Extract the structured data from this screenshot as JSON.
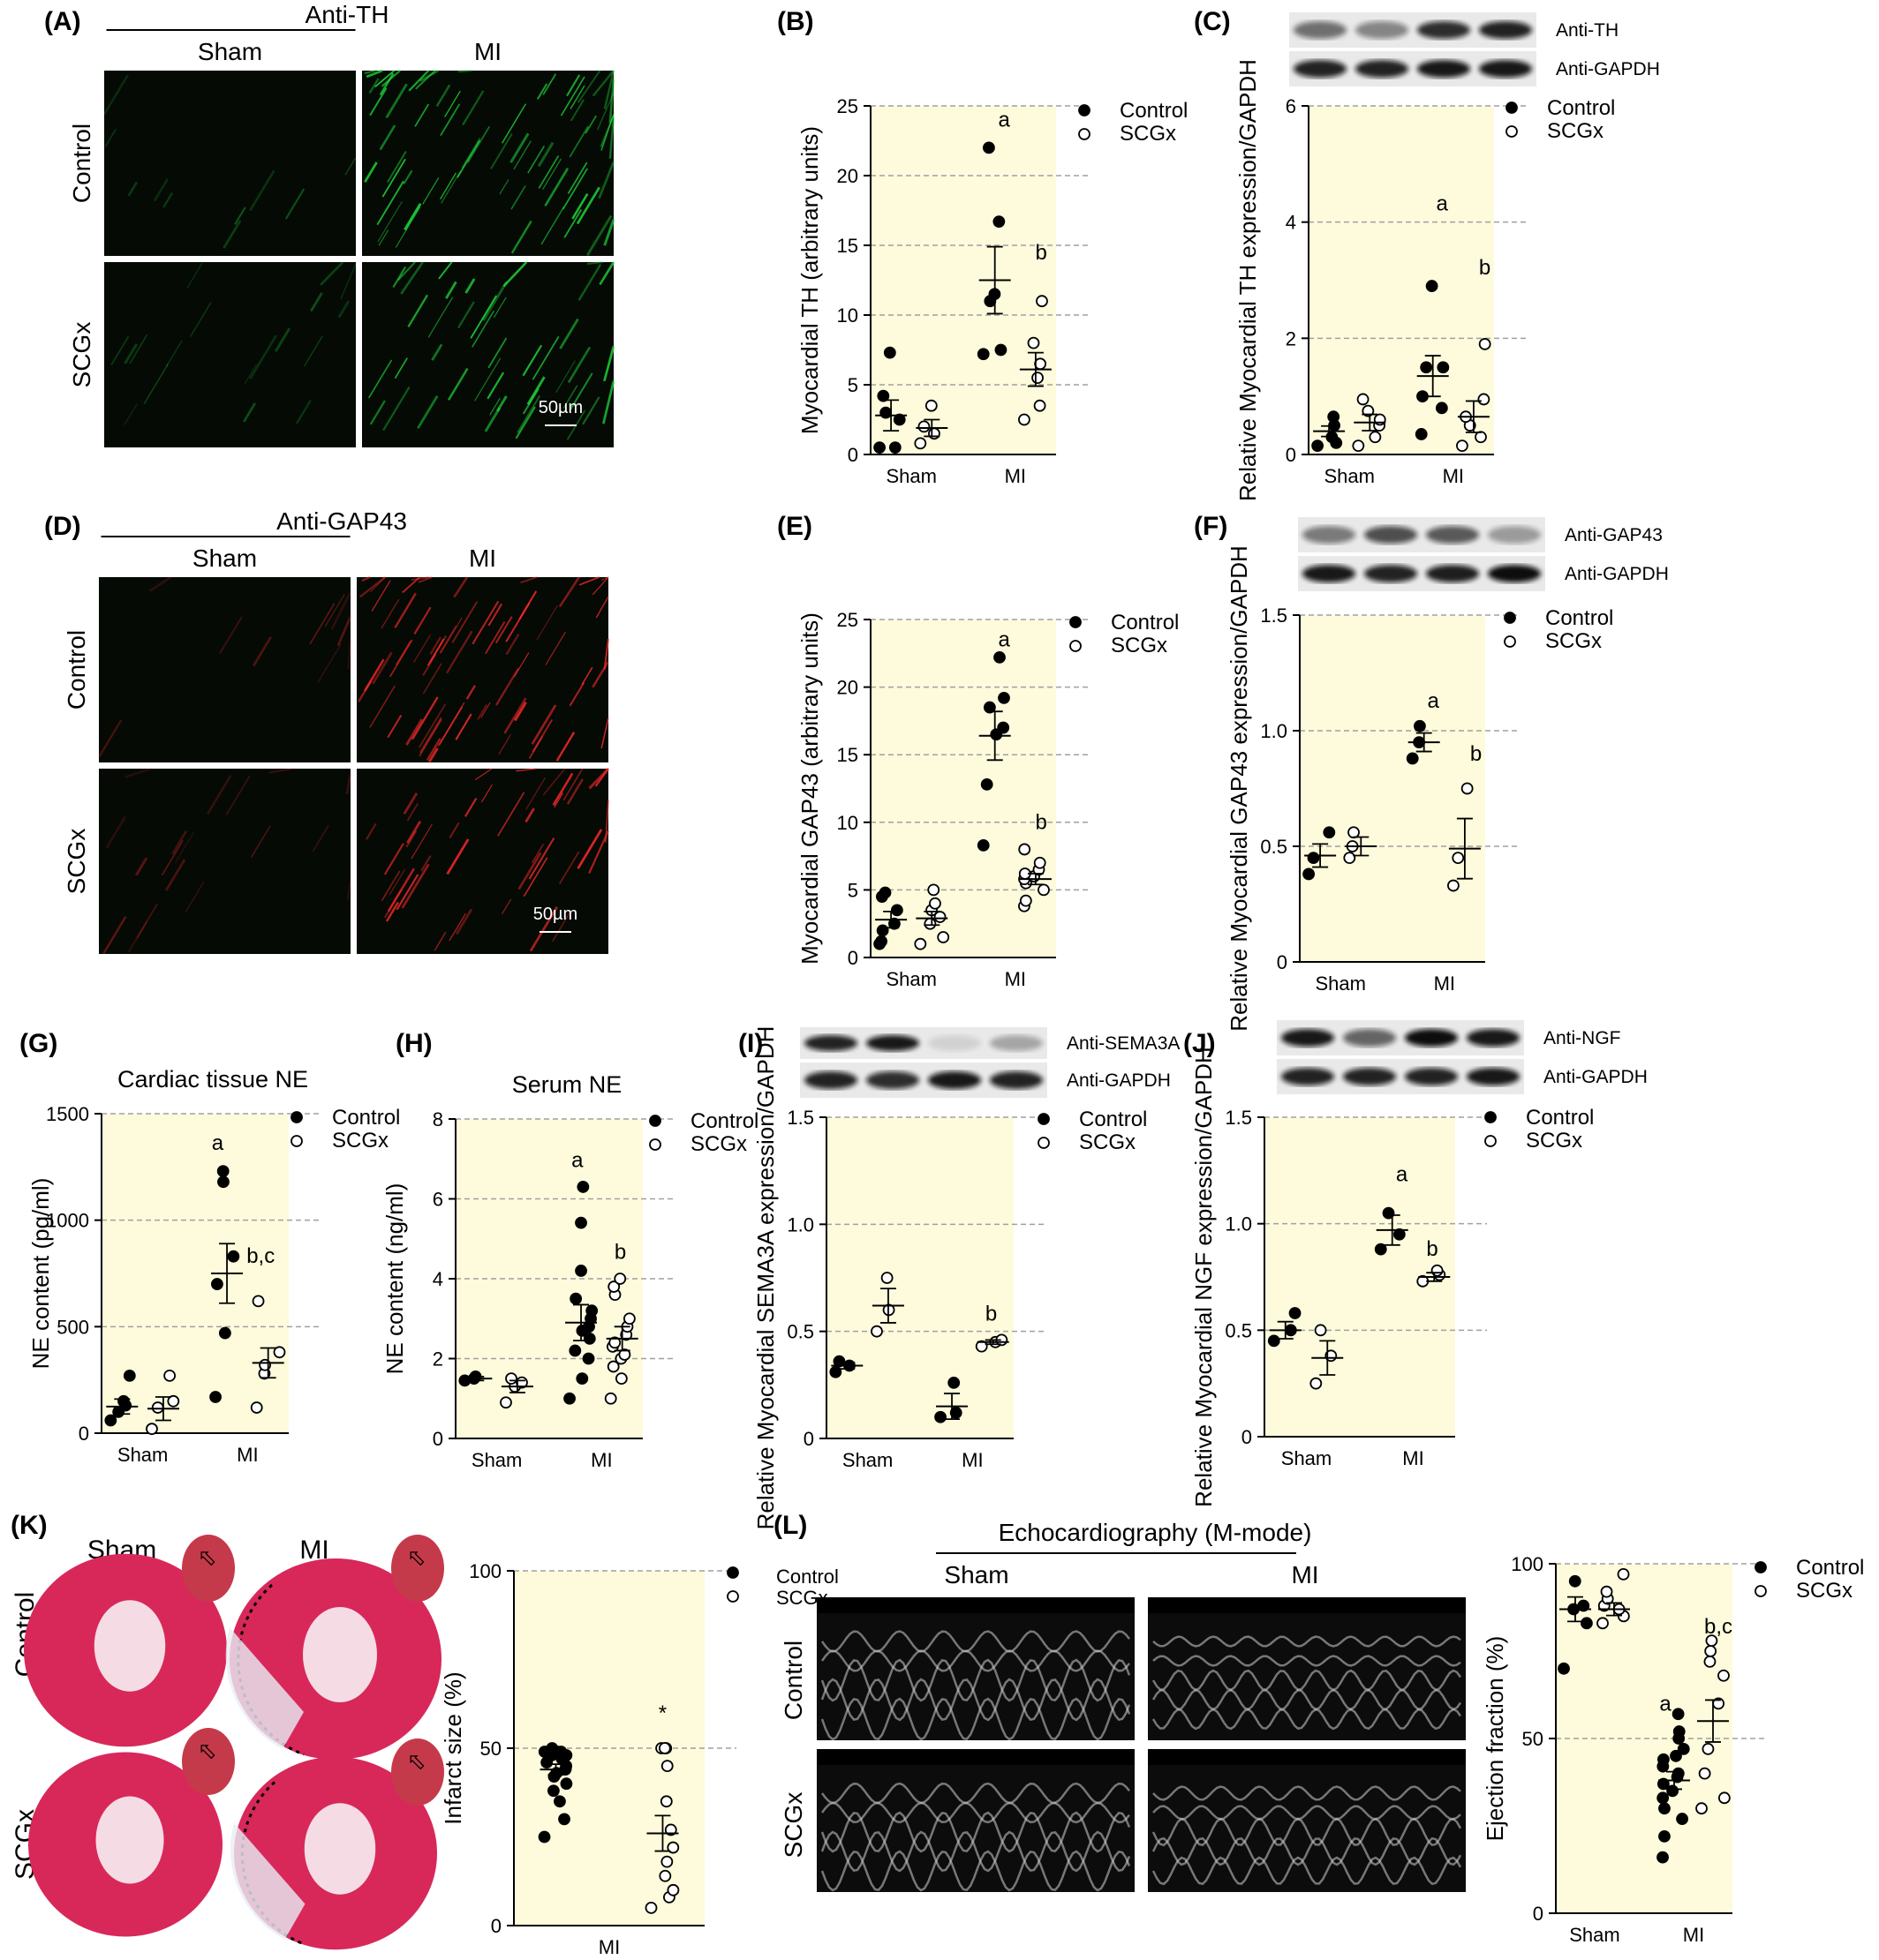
{
  "figure_labels": [
    "(A)",
    "(B)",
    "(C)",
    "(D)",
    "(E)",
    "(F)",
    "(G)",
    "(H)",
    "(I)",
    "(J)",
    "(K)",
    "(L)"
  ],
  "colors": {
    "plot_bg": "#fdfbdc",
    "grid": "#a0a0a0",
    "green_fluor": "#1fe03c",
    "red_fluor": "#ff2a2a"
  },
  "micrographs": [
    {
      "id": "A",
      "stain": "Anti-TH",
      "cols": [
        "Sham",
        "MI"
      ],
      "rows": [
        "Control",
        "SCGx"
      ],
      "scale": "50µm",
      "fluor": "green"
    },
    {
      "id": "D",
      "stain": "Anti-GAP43",
      "cols": [
        "Sham",
        "MI"
      ],
      "rows": [
        "Control",
        "SCGx"
      ],
      "scale": "50µm",
      "fluor": "red"
    }
  ],
  "blots": [
    {
      "id": "C",
      "labels": [
        "Anti-TH",
        "Anti-GAPDH"
      ]
    },
    {
      "id": "F",
      "labels": [
        "Anti-GAP43",
        "Anti-GAPDH"
      ]
    },
    {
      "id": "I",
      "labels": [
        "Anti-SEMA3A",
        "Anti-GAPDH"
      ]
    },
    {
      "id": "J",
      "labels": [
        "Anti-NGF",
        "Anti-GAPDH"
      ]
    }
  ],
  "panel_K": {
    "cols": [
      "Sham",
      "MI"
    ],
    "rows": [
      "Control",
      "SCGx"
    ]
  },
  "panel_L": {
    "title": "Echocardiography (M-mode)",
    "cols": [
      "Sham",
      "MI"
    ],
    "rows": [
      "Control",
      "SCGx"
    ],
    "legend": [
      "Control",
      "SCGx"
    ]
  },
  "chart_data": [
    {
      "id": "B",
      "type": "scatter",
      "title": "",
      "ylabel": "Myocardial TH (arbitrary units)",
      "categories": [
        "Sham",
        "MI"
      ],
      "ylim": [
        0,
        25
      ],
      "yticks": [
        0,
        5,
        10,
        15,
        20,
        25
      ],
      "grid": true,
      "legend": "top-right",
      "series": [
        {
          "name": "Control",
          "values": [
            [
              0.5,
              0.5,
              2.5,
              3.0,
              4.2,
              7.3
            ],
            [
              7.2,
              7.5,
              11.0,
              11.5,
              16.7,
              22.0
            ]
          ],
          "mean": [
            2.8,
            12.5
          ],
          "sem": [
            1.1,
            2.4
          ]
        },
        {
          "name": "SCGx",
          "values": [
            [
              0.8,
              1.5,
              2.0,
              3.5
            ],
            [
              2.5,
              3.5,
              5.5,
              6.5,
              8.0,
              11.0
            ]
          ],
          "mean": [
            1.9,
            6.1
          ],
          "sem": [
            0.6,
            1.2
          ]
        }
      ],
      "annotations": [
        "a",
        "b"
      ]
    },
    {
      "id": "C",
      "type": "scatter",
      "title": "",
      "ylabel": "Relative Myocardial TH expression/GAPDH",
      "categories": [
        "Sham",
        "MI"
      ],
      "ylim": [
        0,
        6
      ],
      "yticks": [
        0,
        2,
        4,
        6
      ],
      "grid": true,
      "legend": "top-right",
      "series": [
        {
          "name": "Control",
          "values": [
            [
              0.15,
              0.2,
              0.3,
              0.5,
              0.65
            ],
            [
              0.35,
              0.8,
              1.0,
              1.5,
              1.5,
              2.9
            ]
          ],
          "mean": [
            0.4,
            1.35
          ],
          "sem": [
            0.09,
            0.35
          ]
        },
        {
          "name": "SCGx",
          "values": [
            [
              0.15,
              0.3,
              0.5,
              0.6,
              0.75,
              0.95
            ],
            [
              0.15,
              0.3,
              0.5,
              0.65,
              0.95,
              1.9
            ]
          ],
          "mean": [
            0.55,
            0.65
          ],
          "sem": [
            0.14,
            0.27
          ]
        }
      ],
      "annotations": [
        "a",
        "b"
      ]
    },
    {
      "id": "E",
      "type": "scatter",
      "title": "",
      "ylabel": "Myocardial GAP43 (arbitrary units)",
      "categories": [
        "Sham",
        "MI"
      ],
      "ylim": [
        0,
        25
      ],
      "yticks": [
        0,
        5,
        10,
        15,
        20,
        25
      ],
      "grid": true,
      "legend": "top-right",
      "series": [
        {
          "name": "Control",
          "values": [
            [
              1.0,
              1.2,
              2.0,
              2.5,
              3.5,
              4.5,
              4.8
            ],
            [
              8.3,
              12.8,
              16.5,
              17.0,
              18.5,
              19.2,
              22.2
            ]
          ],
          "mean": [
            2.8,
            16.4
          ],
          "sem": [
            0.6,
            1.8
          ]
        },
        {
          "name": "SCGx",
          "values": [
            [
              1.0,
              1.5,
              2.5,
              3.0,
              3.5,
              4.0,
              5.0
            ],
            [
              3.8,
              4.2,
              5.0,
              5.5,
              5.8,
              6.0,
              6.2,
              6.5,
              7.0,
              8.0
            ]
          ],
          "mean": [
            2.9,
            5.8
          ],
          "sem": [
            0.5,
            0.4
          ]
        }
      ],
      "annotations": [
        "a",
        "b"
      ]
    },
    {
      "id": "F",
      "type": "scatter",
      "title": "",
      "ylabel": "Relative Myocardial GAP43 expression/GAPDH",
      "categories": [
        "Sham",
        "MI"
      ],
      "ylim": [
        0,
        1.5
      ],
      "yticks": [
        0,
        0.5,
        1.0,
        1.5
      ],
      "ytick_labels": [
        "0",
        "0.5",
        "1.0",
        "1.5"
      ],
      "grid": true,
      "legend": "top-right",
      "series": [
        {
          "name": "Control",
          "values": [
            [
              0.38,
              0.45,
              0.56
            ],
            [
              0.88,
              0.95,
              1.02
            ]
          ],
          "mean": [
            0.46,
            0.95
          ],
          "sem": [
            0.05,
            0.04
          ]
        },
        {
          "name": "SCGx",
          "values": [
            [
              0.45,
              0.5,
              0.56
            ],
            [
              0.33,
              0.45,
              0.75
            ]
          ],
          "mean": [
            0.5,
            0.49
          ],
          "sem": [
            0.04,
            0.13
          ]
        }
      ],
      "annotations": [
        "a",
        "b"
      ]
    },
    {
      "id": "G",
      "type": "scatter",
      "title": "Cardiac tissue NE",
      "ylabel": "NE content (pg/ml)",
      "categories": [
        "Sham",
        "MI"
      ],
      "ylim": [
        0,
        1500
      ],
      "yticks": [
        0,
        500,
        1000,
        1500
      ],
      "grid": true,
      "legend": "top-right",
      "series": [
        {
          "name": "Control",
          "values": [
            [
              60,
              100,
              130,
              150,
              270
            ],
            [
              170,
              470,
              700,
              830,
              1180,
              1230
            ]
          ],
          "mean": [
            125,
            750
          ],
          "sem": [
            35,
            140
          ]
        },
        {
          "name": "SCGx",
          "values": [
            [
              20,
              120,
              150,
              270
            ],
            [
              120,
              280,
              320,
              380,
              620
            ]
          ],
          "mean": [
            115,
            330
          ],
          "sem": [
            55,
            70
          ]
        }
      ],
      "annotations": [
        "a",
        "b,c"
      ]
    },
    {
      "id": "H",
      "type": "scatter",
      "title": "Serum NE",
      "ylabel": "NE content (ng/ml)",
      "categories": [
        "Sham",
        "MI"
      ],
      "ylim": [
        0,
        8
      ],
      "yticks": [
        0,
        2,
        4,
        6,
        8
      ],
      "grid": true,
      "legend": "top-right",
      "series": [
        {
          "name": "Control",
          "values": [
            [
              1.45,
              1.55,
              1.5
            ],
            [
              1.0,
              1.5,
              2.0,
              2.2,
              2.5,
              2.7,
              2.8,
              3.0,
              3.2,
              3.5,
              4.2,
              5.4,
              6.3
            ]
          ],
          "mean": [
            1.5,
            2.9
          ],
          "sem": [
            0.05,
            0.45
          ]
        },
        {
          "name": "SCGx",
          "values": [
            [
              0.9,
              1.3,
              1.4,
              1.5
            ],
            [
              1.0,
              1.5,
              1.8,
              2.0,
              2.1,
              2.3,
              2.4,
              2.6,
              2.8,
              3.0,
              3.6,
              3.8,
              4.0
            ]
          ],
          "mean": [
            1.3,
            2.5
          ],
          "sem": [
            0.15,
            0.3
          ]
        }
      ],
      "annotations": [
        "a",
        "b"
      ]
    },
    {
      "id": "I",
      "type": "scatter",
      "title": "",
      "ylabel": "Relative Myocardial SEMA3A expression/GAPDH",
      "categories": [
        "Sham",
        "MI"
      ],
      "ylim": [
        0,
        1.5
      ],
      "yticks": [
        0,
        0.5,
        1.0,
        1.5
      ],
      "ytick_labels": [
        "0",
        "0.5",
        "1.0",
        "1.5"
      ],
      "grid": true,
      "legend": "top-right",
      "series": [
        {
          "name": "Control",
          "values": [
            [
              0.31,
              0.34,
              0.36
            ],
            [
              0.1,
              0.12,
              0.26
            ]
          ],
          "mean": [
            0.34,
            0.15
          ],
          "sem": [
            0.015,
            0.06
          ]
        },
        {
          "name": "SCGx",
          "values": [
            [
              0.5,
              0.6,
              0.75
            ],
            [
              0.43,
              0.45,
              0.46
            ]
          ],
          "mean": [
            0.62,
            0.45
          ],
          "sem": [
            0.08,
            0.01
          ]
        }
      ],
      "annotations": [
        "b"
      ]
    },
    {
      "id": "J",
      "type": "scatter",
      "title": "",
      "ylabel": "Relative Myocardial NGF expression/GAPDH",
      "categories": [
        "Sham",
        "MI"
      ],
      "ylim": [
        0,
        1.5
      ],
      "yticks": [
        0,
        0.5,
        1.0,
        1.5
      ],
      "ytick_labels": [
        "0",
        "0.5",
        "1.0",
        "1.5"
      ],
      "grid": true,
      "legend": "top-right",
      "series": [
        {
          "name": "Control",
          "values": [
            [
              0.45,
              0.5,
              0.58
            ],
            [
              0.88,
              0.95,
              1.05
            ]
          ],
          "mean": [
            0.5,
            0.97
          ],
          "sem": [
            0.04,
            0.07
          ]
        },
        {
          "name": "SCGx",
          "values": [
            [
              0.25,
              0.38,
              0.5
            ],
            [
              0.73,
              0.76,
              0.78
            ]
          ],
          "mean": [
            0.37,
            0.75
          ],
          "sem": [
            0.08,
            0.02
          ]
        }
      ],
      "annotations": [
        "a",
        "b"
      ]
    },
    {
      "id": "K",
      "type": "scatter",
      "title": "",
      "ylabel": "Infarct size (%)",
      "categories": [
        "MI"
      ],
      "ylim": [
        0,
        100
      ],
      "yticks": [
        0,
        50,
        100
      ],
      "grid": true,
      "legend": "top-right",
      "legend_labels_printed": false,
      "series": [
        {
          "name": "",
          "values": [
            [
              25,
              30,
              35,
              38,
              40,
              42,
              43,
              44,
              45,
              46,
              47,
              48,
              48,
              49,
              49,
              49,
              50
            ]
          ],
          "mean": [
            44
          ],
          "sem": [
            1.5
          ]
        },
        {
          "name": "",
          "values": [
            [
              5,
              8,
              10,
              14,
              18,
              22,
              27,
              35,
              45,
              50,
              50,
              50
            ]
          ],
          "mean": [
            26
          ],
          "sem": [
            5
          ]
        }
      ],
      "annotations": [
        "*"
      ]
    },
    {
      "id": "L",
      "type": "scatter",
      "title": "",
      "ylabel": "Ejection fraction (%)",
      "categories": [
        "Sham",
        "MI"
      ],
      "ylim": [
        0,
        100
      ],
      "yticks": [
        0,
        50,
        100
      ],
      "grid": true,
      "legend": "top-right",
      "series": [
        {
          "name": "Control",
          "values": [
            [
              70,
              83,
              87,
              88,
              95
            ],
            [
              16,
              22,
              27,
              30,
              33,
              35,
              37,
              39,
              40,
              42,
              44,
              45,
              47,
              50,
              52,
              57
            ]
          ],
          "mean": [
            87,
            38
          ],
          "sem": [
            3.5,
            2.5
          ]
        },
        {
          "name": "SCGx",
          "values": [
            [
              83,
              85,
              87,
              88,
              90,
              92,
              97
            ],
            [
              30,
              33,
              40,
              47,
              60,
              68,
              72,
              75,
              78
            ]
          ],
          "mean": [
            87,
            55
          ],
          "sem": [
            1.8,
            6
          ]
        }
      ],
      "annotations": [
        "a",
        "b,c"
      ]
    }
  ]
}
